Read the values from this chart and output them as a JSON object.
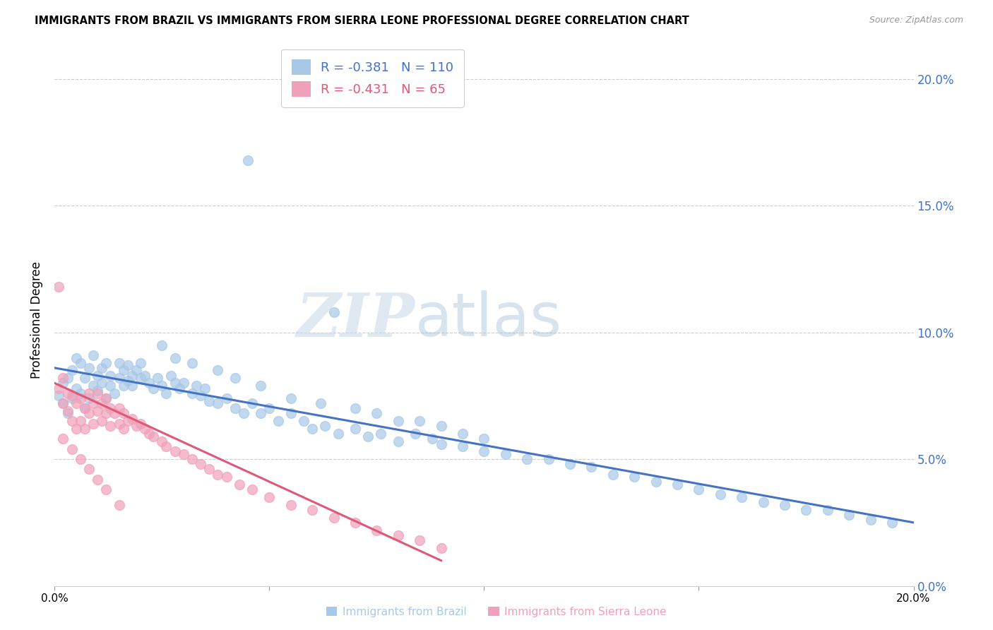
{
  "title": "IMMIGRANTS FROM BRAZIL VS IMMIGRANTS FROM SIERRA LEONE PROFESSIONAL DEGREE CORRELATION CHART",
  "source": "Source: ZipAtlas.com",
  "ylabel": "Professional Degree",
  "xlabel_brazil": "Immigrants from Brazil",
  "xlabel_sierra": "Immigrants from Sierra Leone",
  "brazil_R": -0.381,
  "brazil_N": 110,
  "sierra_R": -0.431,
  "sierra_N": 65,
  "brazil_color": "#a8c8e8",
  "sierra_color": "#f0a0b8",
  "brazil_line_color": "#4472c4",
  "sierra_line_color": "#e05878",
  "xlim": [
    0.0,
    0.2
  ],
  "ylim": [
    0.0,
    0.21
  ],
  "xticks": [
    0.0,
    0.05,
    0.1,
    0.15,
    0.2
  ],
  "yticks": [
    0.0,
    0.05,
    0.1,
    0.15,
    0.2
  ],
  "right_yaxis_color": "#4472c4",
  "watermark_zip": "ZIP",
  "watermark_atlas": "atlas",
  "brazil_scatter_x": [
    0.001,
    0.002,
    0.002,
    0.003,
    0.003,
    0.004,
    0.004,
    0.005,
    0.005,
    0.006,
    0.006,
    0.007,
    0.007,
    0.008,
    0.008,
    0.009,
    0.009,
    0.01,
    0.01,
    0.011,
    0.011,
    0.012,
    0.012,
    0.013,
    0.013,
    0.014,
    0.015,
    0.015,
    0.016,
    0.016,
    0.017,
    0.017,
    0.018,
    0.018,
    0.019,
    0.02,
    0.02,
    0.021,
    0.022,
    0.023,
    0.024,
    0.025,
    0.026,
    0.027,
    0.028,
    0.029,
    0.03,
    0.032,
    0.033,
    0.034,
    0.035,
    0.036,
    0.038,
    0.04,
    0.042,
    0.044,
    0.046,
    0.048,
    0.05,
    0.052,
    0.055,
    0.058,
    0.06,
    0.063,
    0.066,
    0.07,
    0.073,
    0.076,
    0.08,
    0.084,
    0.088,
    0.09,
    0.095,
    0.1,
    0.105,
    0.11,
    0.115,
    0.12,
    0.125,
    0.13,
    0.135,
    0.14,
    0.145,
    0.15,
    0.155,
    0.16,
    0.165,
    0.17,
    0.175,
    0.18,
    0.185,
    0.19,
    0.195,
    0.025,
    0.028,
    0.032,
    0.038,
    0.042,
    0.048,
    0.055,
    0.062,
    0.07,
    0.075,
    0.08,
    0.085,
    0.09,
    0.095,
    0.1,
    0.045,
    0.065
  ],
  "brazil_scatter_y": [
    0.075,
    0.072,
    0.08,
    0.068,
    0.082,
    0.074,
    0.085,
    0.078,
    0.09,
    0.076,
    0.088,
    0.07,
    0.082,
    0.074,
    0.086,
    0.079,
    0.091,
    0.077,
    0.083,
    0.08,
    0.086,
    0.074,
    0.088,
    0.079,
    0.083,
    0.076,
    0.088,
    0.082,
    0.079,
    0.085,
    0.081,
    0.087,
    0.079,
    0.083,
    0.085,
    0.082,
    0.088,
    0.083,
    0.08,
    0.078,
    0.082,
    0.079,
    0.076,
    0.083,
    0.08,
    0.078,
    0.08,
    0.076,
    0.079,
    0.075,
    0.078,
    0.073,
    0.072,
    0.074,
    0.07,
    0.068,
    0.072,
    0.068,
    0.07,
    0.065,
    0.068,
    0.065,
    0.062,
    0.063,
    0.06,
    0.062,
    0.059,
    0.06,
    0.057,
    0.06,
    0.058,
    0.056,
    0.055,
    0.053,
    0.052,
    0.05,
    0.05,
    0.048,
    0.047,
    0.044,
    0.043,
    0.041,
    0.04,
    0.038,
    0.036,
    0.035,
    0.033,
    0.032,
    0.03,
    0.03,
    0.028,
    0.026,
    0.025,
    0.095,
    0.09,
    0.088,
    0.085,
    0.082,
    0.079,
    0.074,
    0.072,
    0.07,
    0.068,
    0.065,
    0.065,
    0.063,
    0.06,
    0.058,
    0.168,
    0.108
  ],
  "sierra_scatter_x": [
    0.001,
    0.001,
    0.002,
    0.002,
    0.003,
    0.003,
    0.004,
    0.004,
    0.005,
    0.005,
    0.006,
    0.006,
    0.007,
    0.007,
    0.008,
    0.008,
    0.009,
    0.009,
    0.01,
    0.01,
    0.011,
    0.011,
    0.012,
    0.012,
    0.013,
    0.013,
    0.014,
    0.015,
    0.015,
    0.016,
    0.016,
    0.017,
    0.018,
    0.019,
    0.02,
    0.021,
    0.022,
    0.023,
    0.025,
    0.026,
    0.028,
    0.03,
    0.032,
    0.034,
    0.036,
    0.038,
    0.04,
    0.043,
    0.046,
    0.05,
    0.055,
    0.06,
    0.065,
    0.07,
    0.075,
    0.08,
    0.085,
    0.09,
    0.002,
    0.004,
    0.006,
    0.008,
    0.01,
    0.012,
    0.015
  ],
  "sierra_scatter_y": [
    0.118,
    0.078,
    0.082,
    0.072,
    0.076,
    0.069,
    0.075,
    0.065,
    0.072,
    0.062,
    0.074,
    0.065,
    0.07,
    0.062,
    0.076,
    0.068,
    0.072,
    0.064,
    0.076,
    0.069,
    0.072,
    0.065,
    0.074,
    0.068,
    0.07,
    0.063,
    0.068,
    0.07,
    0.064,
    0.068,
    0.062,
    0.065,
    0.066,
    0.063,
    0.064,
    0.062,
    0.06,
    0.059,
    0.057,
    0.055,
    0.053,
    0.052,
    0.05,
    0.048,
    0.046,
    0.044,
    0.043,
    0.04,
    0.038,
    0.035,
    0.032,
    0.03,
    0.027,
    0.025,
    0.022,
    0.02,
    0.018,
    0.015,
    0.058,
    0.054,
    0.05,
    0.046,
    0.042,
    0.038,
    0.032
  ]
}
